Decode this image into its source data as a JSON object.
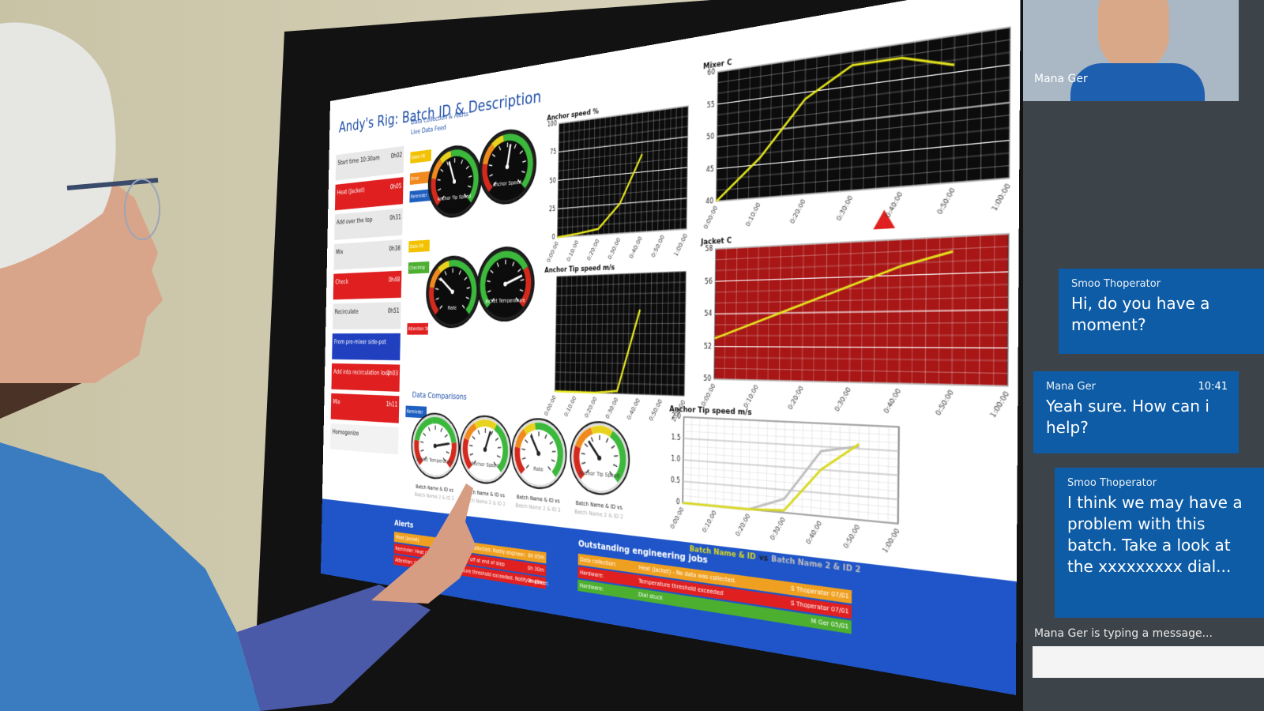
{
  "dashboard": {
    "title": "Andy's Rig: Batch ID & Description",
    "steps": [
      {
        "name": "Start time 10:30am",
        "time": "0h02",
        "color": "#e8e8e8"
      },
      {
        "name": "Heat (Jacket)",
        "time": "0h05",
        "color": "#e02020"
      },
      {
        "name": "Add over the top",
        "time": "0h31",
        "color": "#e8e8e8"
      },
      {
        "name": "Mix",
        "time": "0h38",
        "color": "#e8e8e8"
      },
      {
        "name": "Check",
        "time": "0h48",
        "color": "#e02020"
      },
      {
        "name": "Recirculate",
        "time": "0h51",
        "color": "#e8e8e8"
      },
      {
        "name": "From pre-mixer side-pot",
        "color": "#2040c0"
      },
      {
        "name": "Add into recirculation loop",
        "time": "1h03",
        "color": "#e02020"
      },
      {
        "name": "Mix",
        "time": "1h11",
        "color": "#e02020"
      },
      {
        "name": "Homogenize",
        "color": "#f2f2f2"
      }
    ],
    "status": {
      "header_1": "Data Collection & Alerts",
      "header_2": "Live Data Feed",
      "items": [
        {
          "text": "Data OK",
          "color": "#f2c200"
        },
        {
          "text": "Error",
          "color": "#f08a1e"
        },
        {
          "text": "Reminder",
          "color": "#1f5fc0"
        },
        {
          "text": "Data OK",
          "color": "#f2c200"
        },
        {
          "text": "Checking",
          "color": "#4caf30"
        },
        {
          "text": "Attention 56.2°C",
          "color": "#e02020"
        },
        {
          "text": "Reminder",
          "color": "#1f5fc0"
        }
      ]
    },
    "gauges": [
      "Anchor Tip Speed",
      "Anchor Speed",
      "Rate",
      "Jacket Temperature"
    ],
    "charts": [
      {
        "type": "line",
        "title": "Anchor speed %",
        "x": [
          "0:00:00",
          "0:10:00",
          "0:20:00",
          "0:30:00",
          "0:40:00",
          "0:50:00",
          "1:00:00"
        ],
        "ylim": [
          0,
          100
        ],
        "yticks": [
          0,
          25,
          50,
          75,
          100
        ],
        "values": [
          0,
          2,
          5,
          25,
          65,
          null,
          null
        ],
        "color": "#e6e61e",
        "background": "#0c0c0c"
      },
      {
        "type": "line",
        "title": "Mixer C",
        "x": [
          "0:00:00",
          "0:10:00",
          "0:20:00",
          "0:30:00",
          "0:40:00",
          "0:50:00",
          "1:00:00"
        ],
        "ylim": [
          40,
          60
        ],
        "yticks": [
          40,
          45,
          50,
          55,
          60
        ],
        "values": [
          40,
          46,
          54,
          58,
          58,
          56,
          null
        ],
        "color": "#e6e61e",
        "background": "#0c0c0c"
      },
      {
        "type": "line",
        "title": "Anchor Tip speed m/s",
        "x": [
          "0:00:00",
          "0:10:00",
          "0:20:00",
          "0:30:00",
          "0:40:00",
          "0:50:00",
          "1:00:00"
        ],
        "ylim": [
          0,
          1
        ],
        "values": [
          0,
          0,
          0,
          0.02,
          0.7,
          null,
          null
        ],
        "color": "#e6e61e",
        "background": "#0c0c0c"
      },
      {
        "type": "line",
        "title": "Jacket C",
        "x": [
          "0:00:00",
          "0:10:00",
          "0:20:00",
          "0:30:00",
          "0:40:00",
          "0:50:00",
          "1:00:00"
        ],
        "ylim": [
          50,
          58
        ],
        "yticks": [
          50,
          52,
          54,
          56,
          58
        ],
        "values": [
          52.5,
          53.5,
          54.5,
          55.5,
          56.5,
          57.2,
          null
        ],
        "color": "#e6e61e",
        "background": "#a81616"
      }
    ],
    "comparisons": {
      "title": "Data Comparisons",
      "gauges": [
        {
          "label": "Jacket Temperature",
          "caption": "Batch Name & ID vs",
          "subcaption": "Batch Name 2 & ID 2"
        },
        {
          "label": "Anchor Speed",
          "caption": "Batch Name & ID vs",
          "subcaption": "Batch Name 2 & ID 2"
        },
        {
          "label": "Rate",
          "caption": "Batch Name & ID vs",
          "subcaption": "Batch Name 2 & ID 2"
        },
        {
          "label": "Anchor Tip Speed",
          "caption": "Batch Name & ID vs",
          "subcaption": "Batch Name 2 & ID 2"
        }
      ],
      "chart": {
        "type": "line",
        "title": "Anchor Tip speed m/s",
        "x": [
          "0:00:00",
          "0:10:00",
          "0:20:00",
          "0:30:00",
          "0:40:00",
          "0:50:00",
          "1:00:00"
        ],
        "ylim": [
          0,
          2
        ],
        "yticks": [
          0,
          0.5,
          {
            "value": 1,
            "label": "1.0"
          },
          1.5,
          {
            "value": 2,
            "label": "2.0"
          }
        ],
        "background": "#ffffff",
        "legend_separator": "vs",
        "series": [
          {
            "name": "Batch Name & ID",
            "color": "#d8d81e",
            "values": [
              0,
              0,
              0,
              0.05,
              1.0,
              1.6,
              null
            ]
          },
          {
            "name": "Batch Name 2 & ID 2",
            "color": "#bdbdbd",
            "values": [
              0,
              0,
              0,
              0.3,
              1.4,
              1.55,
              null
            ]
          }
        ]
      }
    },
    "alerts": {
      "title": "Alerts",
      "rows": [
        {
          "label": "Heat (Jacket)",
          "text": "No data was collected. Notify engineer.",
          "time": "0h 05m",
          "color": "#f0a020"
        },
        {
          "label": "Reminder: Heat (Jacket)",
          "text": "Turn heater off at end of step",
          "time": "0h 30m",
          "color": "#e02020"
        },
        {
          "label": "Attention: Check temperature",
          "text": "Temperature threshold exceeded. Notify engineer.",
          "time": "0h 49m",
          "color": "#e02020"
        }
      ]
    },
    "jobs": {
      "title": "Outstanding engineering jobs",
      "rows": [
        {
          "label": "Data collection:",
          "text": "Heat (Jacket) - No data was collected.",
          "who": "S Thoperator 07/01",
          "color": "#f0a020"
        },
        {
          "label": "Hardware:",
          "text": "Temperature threshold exceeded",
          "who": "S Thoperator 07/01",
          "color": "#e02020"
        },
        {
          "label": "Hardware:",
          "text": "Dial stuck",
          "who": "M Ger 05/01",
          "color": "#4caf30"
        }
      ]
    }
  },
  "video": {
    "name": "Mana Ger"
  },
  "chat": {
    "messages": [
      {
        "sender": "Smoo Thoperator",
        "text": "Hi, do you have a moment?"
      },
      {
        "sender": "Mana Ger",
        "time": "10:41",
        "text": "Yeah sure. How can i help?"
      },
      {
        "sender": "Smoo Thoperator",
        "text": "I think we may have a problem with this batch. Take a look at the xxxxxxxxx dial..."
      }
    ],
    "typing": "Mana Ger is typing a message..."
  }
}
